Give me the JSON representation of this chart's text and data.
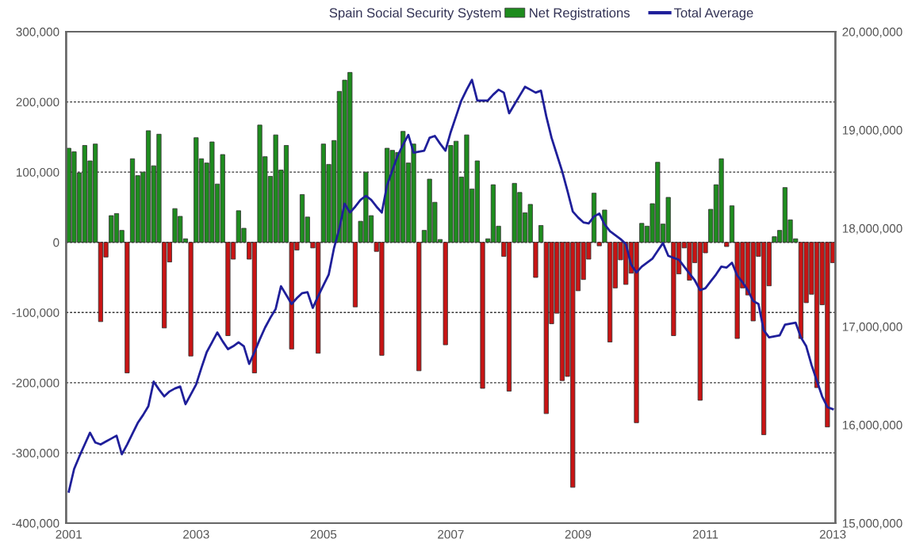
{
  "chart_data": {
    "type": "bar",
    "title": "Spain Social Security System",
    "categories": [
      "2001",
      null,
      null,
      null,
      null,
      null,
      null,
      null,
      null,
      null,
      null,
      null,
      null,
      null,
      null,
      null,
      null,
      null,
      null,
      null,
      null,
      null,
      null,
      null,
      "2003",
      null,
      null,
      null,
      null,
      null,
      null,
      null,
      null,
      null,
      null,
      null,
      null,
      null,
      null,
      null,
      null,
      null,
      null,
      null,
      null,
      null,
      null,
      null,
      "2005",
      null,
      null,
      null,
      null,
      null,
      null,
      null,
      null,
      null,
      null,
      null,
      null,
      null,
      null,
      null,
      null,
      null,
      null,
      null,
      null,
      null,
      null,
      null,
      "2007",
      null,
      null,
      null,
      null,
      null,
      null,
      null,
      null,
      null,
      null,
      null,
      null,
      null,
      null,
      null,
      null,
      null,
      null,
      null,
      null,
      null,
      null,
      null,
      "2009",
      null,
      null,
      null,
      null,
      null,
      null,
      null,
      null,
      null,
      null,
      null,
      null,
      null,
      null,
      null,
      null,
      null,
      null,
      null,
      null,
      null,
      null,
      null,
      "2011",
      null,
      null,
      null,
      null,
      null,
      null,
      null,
      null,
      null,
      null,
      null,
      null,
      null,
      null,
      null,
      null,
      null,
      null,
      null,
      null,
      null,
      null,
      null,
      "2013"
    ],
    "series": [
      {
        "name": "Net Registrations",
        "values": [
          134000,
          129000,
          99000,
          138000,
          116000,
          140000,
          -113000,
          -21000,
          38000,
          41000,
          17000,
          -186000,
          119000,
          95000,
          100000,
          159000,
          109000,
          154000,
          -122000,
          -28000,
          48000,
          37000,
          5000,
          -162000,
          149000,
          119000,
          113000,
          143000,
          83000,
          125000,
          -133000,
          -24000,
          45000,
          20000,
          -24000,
          -186000,
          167000,
          122000,
          94000,
          153000,
          103000,
          138000,
          -152000,
          -11000,
          68000,
          36000,
          -8000,
          -158000,
          140000,
          111000,
          145000,
          215000,
          231000,
          242000,
          -92000,
          30000,
          100000,
          38000,
          -13000,
          -161000,
          134000,
          131000,
          128000,
          158000,
          113000,
          140000,
          -183000,
          17000,
          90000,
          57000,
          4000,
          -146000,
          138000,
          144000,
          93000,
          153000,
          76000,
          116000,
          -208000,
          5000,
          82000,
          23000,
          -20000,
          -212000,
          84000,
          71000,
          42000,
          54000,
          -50000,
          24000,
          -244000,
          -116000,
          -101000,
          -197000,
          -191000,
          -349000,
          -69000,
          -53000,
          -24000,
          70000,
          -5000,
          46000,
          -142000,
          -65000,
          -25000,
          -60000,
          -44000,
          -257000,
          27000,
          23000,
          55000,
          114000,
          26000,
          64000,
          -133000,
          -45000,
          -8000,
          -54000,
          -29000,
          -225000,
          -15000,
          47000,
          82000,
          119000,
          -6000,
          52000,
          -137000,
          -65000,
          -75000,
          -112000,
          -20000,
          -274000,
          -62000,
          8000,
          17000,
          78000,
          32000,
          5000,
          -137000,
          -86000,
          -74000,
          -207000,
          -89000,
          -263000,
          -29000
        ],
        "colors": [
          "#1e8c1e",
          "#1e8c1e",
          "#1e8c1e",
          "#1e8c1e",
          "#1e8c1e",
          "#1e8c1e",
          "#c81414",
          "#c81414",
          "#1e8c1e",
          "#1e8c1e",
          "#1e8c1e",
          "#c81414",
          "#1e8c1e",
          "#1e8c1e",
          "#1e8c1e",
          "#1e8c1e",
          "#1e8c1e",
          "#1e8c1e",
          "#c81414",
          "#c81414",
          "#1e8c1e",
          "#1e8c1e",
          "#1e8c1e",
          "#c81414",
          "#1e8c1e",
          "#1e8c1e",
          "#1e8c1e",
          "#1e8c1e",
          "#1e8c1e",
          "#1e8c1e",
          "#c81414",
          "#c81414",
          "#1e8c1e",
          "#1e8c1e",
          "#c81414",
          "#c81414",
          "#1e8c1e",
          "#1e8c1e",
          "#1e8c1e",
          "#1e8c1e",
          "#1e8c1e",
          "#1e8c1e",
          "#c81414",
          "#c81414",
          "#1e8c1e",
          "#1e8c1e",
          "#c81414",
          "#c81414",
          "#1e8c1e",
          "#1e8c1e",
          "#1e8c1e",
          "#1e8c1e",
          "#1e8c1e",
          "#1e8c1e",
          "#c81414",
          "#1e8c1e",
          "#1e8c1e",
          "#1e8c1e",
          "#c81414",
          "#c81414",
          "#1e8c1e",
          "#1e8c1e",
          "#1e8c1e",
          "#1e8c1e",
          "#1e8c1e",
          "#1e8c1e",
          "#c81414",
          "#1e8c1e",
          "#1e8c1e",
          "#1e8c1e",
          "#1e8c1e",
          "#c81414",
          "#1e8c1e",
          "#1e8c1e",
          "#1e8c1e",
          "#1e8c1e",
          "#1e8c1e",
          "#1e8c1e",
          "#c81414",
          "#1e8c1e",
          "#1e8c1e",
          "#1e8c1e",
          "#c81414",
          "#c81414",
          "#1e8c1e",
          "#1e8c1e",
          "#1e8c1e",
          "#1e8c1e",
          "#c81414",
          "#1e8c1e",
          "#c81414",
          "#c81414",
          "#c81414",
          "#c81414",
          "#c81414",
          "#c81414",
          "#c81414",
          "#c81414",
          "#c81414",
          "#1e8c1e",
          "#c81414",
          "#1e8c1e",
          "#c81414",
          "#c81414",
          "#c81414",
          "#c81414",
          "#c81414",
          "#c81414",
          "#1e8c1e",
          "#1e8c1e",
          "#1e8c1e",
          "#1e8c1e",
          "#1e8c1e",
          "#1e8c1e",
          "#c81414",
          "#c81414",
          "#c81414",
          "#c81414",
          "#c81414",
          "#c81414",
          "#c81414",
          "#1e8c1e",
          "#1e8c1e",
          "#1e8c1e",
          "#c81414",
          "#1e8c1e",
          "#c81414",
          "#c81414",
          "#c81414",
          "#c81414",
          "#c81414",
          "#c81414",
          "#c81414",
          "#1e8c1e",
          "#1e8c1e",
          "#1e8c1e",
          "#1e8c1e",
          "#1e8c1e",
          "#c81414",
          "#c81414",
          "#c81414",
          "#c81414",
          "#c81414",
          "#c81414",
          "#c81414"
        ]
      },
      {
        "name": "Total Average",
        "type": "line",
        "axis": "y2",
        "color": "#1f1f9a",
        "values": [
          15320000,
          15550000,
          15680000,
          15800000,
          15920000,
          15820000,
          15800000,
          15830000,
          15860000,
          15890000,
          15700000,
          15800000,
          15910000,
          16020000,
          16100000,
          16190000,
          16440000,
          16360000,
          16290000,
          16340000,
          16370000,
          16390000,
          16210000,
          16310000,
          16410000,
          16580000,
          16740000,
          16840000,
          16940000,
          16850000,
          16770000,
          16800000,
          16840000,
          16800000,
          16620000,
          16740000,
          16870000,
          16990000,
          17090000,
          17180000,
          17410000,
          17320000,
          17230000,
          17290000,
          17340000,
          17350000,
          17190000,
          17310000,
          17420000,
          17530000,
          17800000,
          18000000,
          18250000,
          18160000,
          18220000,
          18290000,
          18330000,
          18290000,
          18220000,
          18160000,
          18440000,
          18590000,
          18740000,
          18850000,
          18950000,
          18770000,
          18780000,
          18790000,
          18920000,
          18940000,
          18860000,
          18790000,
          18980000,
          19140000,
          19300000,
          19410000,
          19510000,
          19300000,
          19300000,
          19300000,
          19360000,
          19410000,
          19380000,
          19170000,
          19260000,
          19350000,
          19440000,
          19410000,
          19380000,
          19400000,
          19140000,
          18920000,
          18750000,
          18580000,
          18380000,
          18170000,
          18110000,
          18060000,
          18050000,
          18120000,
          18150000,
          18040000,
          17970000,
          17930000,
          17890000,
          17840000,
          17630000,
          17550000,
          17610000,
          17650000,
          17690000,
          17770000,
          17850000,
          17720000,
          17700000,
          17680000,
          17610000,
          17540000,
          17470000,
          17370000,
          17390000,
          17460000,
          17530000,
          17610000,
          17600000,
          17650000,
          17520000,
          17450000,
          17370000,
          17260000,
          17230000,
          16960000,
          16890000,
          16900000,
          16910000,
          17020000,
          17030000,
          17040000,
          16890000,
          16800000,
          16610000,
          16450000,
          16290000,
          16180000,
          16160000
        ]
      }
    ],
    "ylim": [
      -400000,
      300000
    ],
    "yticks": [
      {
        "value": -400000,
        "label": "-400,000"
      },
      {
        "value": -300000,
        "label": "-300,000"
      },
      {
        "value": -200000,
        "label": "-200,000"
      },
      {
        "value": -100000,
        "label": "-100,000"
      },
      0,
      {
        "value": 100000,
        "label": "100,000"
      },
      {
        "value": 200000,
        "label": "200,000"
      },
      {
        "value": 300000,
        "label": "300,000"
      }
    ],
    "y2lim": [
      15000000,
      20000000
    ],
    "y2ticks": [
      {
        "value": 15000000,
        "label": "15,000,000"
      },
      {
        "value": 16000000,
        "label": "16,000,000"
      },
      {
        "value": 17000000,
        "label": "17,000,000"
      },
      {
        "value": 18000000,
        "label": "18,000,000"
      },
      {
        "value": 19000000,
        "label": "19,000,000"
      },
      {
        "value": 20000000,
        "label": "20,000,000"
      }
    ],
    "grid": "y",
    "legend": "top"
  }
}
